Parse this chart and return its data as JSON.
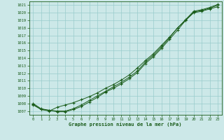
{
  "x": [
    0,
    1,
    2,
    3,
    4,
    5,
    6,
    7,
    8,
    9,
    10,
    11,
    12,
    13,
    14,
    15,
    16,
    17,
    18,
    19,
    20,
    21,
    22,
    23
  ],
  "line1": [
    1007.8,
    1007.2,
    1007.0,
    1007.5,
    1007.8,
    1008.1,
    1008.5,
    1008.9,
    1009.4,
    1010.0,
    1010.5,
    1011.1,
    1011.8,
    1012.7,
    1013.7,
    1014.6,
    1015.7,
    1016.8,
    1018.0,
    1019.0,
    1020.0,
    1020.2,
    1020.5,
    1020.8
  ],
  "line2": [
    1008.0,
    1007.3,
    1007.1,
    1006.9,
    1006.9,
    1007.2,
    1007.6,
    1008.2,
    1008.8,
    1009.5,
    1010.0,
    1010.6,
    1011.3,
    1012.1,
    1013.3,
    1014.2,
    1015.3,
    1016.5,
    1017.7,
    1019.0,
    1020.1,
    1020.3,
    1020.6,
    1021.0
  ],
  "line3": [
    1007.9,
    1007.2,
    1007.1,
    1007.0,
    1007.0,
    1007.3,
    1007.8,
    1008.4,
    1009.0,
    1009.6,
    1010.2,
    1010.8,
    1011.5,
    1012.3,
    1013.5,
    1014.4,
    1015.5,
    1016.7,
    1018.0,
    1019.1,
    1020.2,
    1020.4,
    1020.7,
    1021.1
  ],
  "ylim": [
    1006.5,
    1021.5
  ],
  "xlim": [
    -0.5,
    23.5
  ],
  "yticks": [
    1007,
    1008,
    1009,
    1010,
    1011,
    1012,
    1013,
    1014,
    1015,
    1016,
    1017,
    1018,
    1019,
    1020,
    1021
  ],
  "xticks": [
    0,
    1,
    2,
    3,
    4,
    5,
    6,
    7,
    8,
    9,
    10,
    11,
    12,
    13,
    14,
    15,
    16,
    17,
    18,
    19,
    20,
    21,
    22,
    23
  ],
  "line_color": "#1a5c1a",
  "bg_color": "#cce8e8",
  "grid_color": "#99cccc",
  "xlabel": "Graphe pression niveau de la mer (hPa)",
  "marker": "+"
}
